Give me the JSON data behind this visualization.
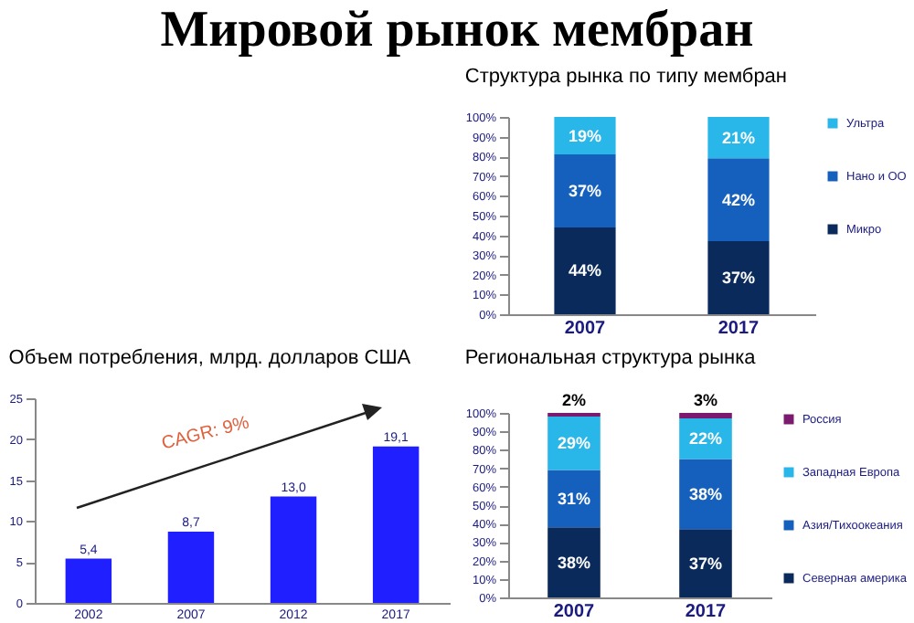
{
  "chart_data": [
    {
      "type": "bar",
      "title": "Мировой рынок мембран",
      "subtitle": "Структура рынка по типу мембран",
      "categories": [
        "2007",
        "2017"
      ],
      "stacked": true,
      "legend": "right",
      "ylim": [
        0,
        100
      ],
      "yticks": [
        {
          "value": 0,
          "label": "0%"
        },
        {
          "value": 10,
          "label": "10%"
        },
        {
          "value": 20,
          "label": "20%"
        },
        {
          "value": 30,
          "label": "30%"
        },
        {
          "value": 40,
          "label": "40%"
        },
        {
          "value": 50,
          "label": "50%"
        },
        {
          "value": 60,
          "label": "60%"
        },
        {
          "value": 70,
          "label": "70%"
        },
        {
          "value": 80,
          "label": "80%"
        },
        {
          "value": 90,
          "label": "90%"
        },
        {
          "value": 100,
          "label": "100%"
        }
      ],
      "series": [
        {
          "name": "Микро",
          "color": "#0b2a5c",
          "values": [
            44,
            37
          ],
          "value_labels": [
            "44%",
            "37%"
          ]
        },
        {
          "name": "Нано и ОО",
          "color": "#1560bd",
          "values": [
            37,
            42
          ],
          "value_labels": [
            "37%",
            "42%"
          ]
        },
        {
          "name": "Ультра",
          "color": "#29b6e8",
          "values": [
            19,
            21
          ],
          "value_labels": [
            "19%",
            "21%"
          ]
        }
      ]
    },
    {
      "type": "bar",
      "title": "Объем потребления, млрд. долларов США",
      "categories": [
        "2002",
        "2007",
        "2012",
        "2017"
      ],
      "ylim": [
        0,
        25
      ],
      "yticks": [
        0,
        5,
        10,
        15,
        20,
        25
      ],
      "series": [
        {
          "color": "#1f1fff",
          "values": [
            5.4,
            8.7,
            13.0,
            19.1
          ],
          "value_labels": [
            "5,4",
            "8,7",
            "13,0",
            "19,1"
          ]
        }
      ],
      "annotations": [
        "CAGR: 9%"
      ]
    },
    {
      "type": "bar",
      "title": "Региональная структура рынка",
      "categories": [
        "2007",
        "2017"
      ],
      "stacked": true,
      "legend": "right",
      "ylim": [
        0,
        100
      ],
      "yticks": [
        {
          "value": 0,
          "label": "0%"
        },
        {
          "value": 10,
          "label": "10%"
        },
        {
          "value": 20,
          "label": "20%"
        },
        {
          "value": 30,
          "label": "30%"
        },
        {
          "value": 40,
          "label": "40%"
        },
        {
          "value": 50,
          "label": "50%"
        },
        {
          "value": 60,
          "label": "60%"
        },
        {
          "value": 70,
          "label": "70%"
        },
        {
          "value": 80,
          "label": "80%"
        },
        {
          "value": 90,
          "label": "90%"
        },
        {
          "value": 100,
          "label": "100%"
        }
      ],
      "series": [
        {
          "name": "Северная америка",
          "color": "#0b2a5c",
          "values": [
            38,
            37
          ],
          "value_labels": [
            "38%",
            "37%"
          ]
        },
        {
          "name": "Азия/Тихоокеания",
          "color": "#1560bd",
          "values": [
            31,
            38
          ],
          "value_labels": [
            "31%",
            "38%"
          ]
        },
        {
          "name": "Западная Европа",
          "color": "#29b6e8",
          "values": [
            29,
            22
          ],
          "value_labels": [
            "29%",
            "22%"
          ]
        },
        {
          "name": "Россия",
          "color": "#7b1a6e",
          "values": [
            2,
            3
          ],
          "value_labels": [
            "2%",
            "3%"
          ]
        }
      ]
    }
  ]
}
